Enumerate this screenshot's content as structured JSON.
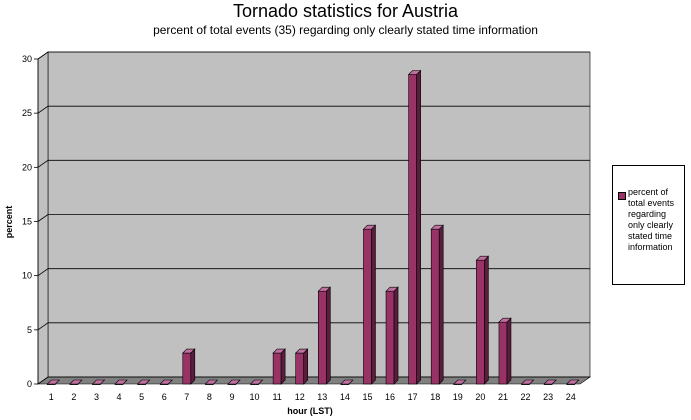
{
  "colors": {
    "bar_front": "#993366",
    "bar_side": "#5a1d3c",
    "bar_top": "#c070a0",
    "wall": "#c0c0c0",
    "floor": "#808080",
    "gridline": "#000000"
  },
  "legend": {
    "label": "percent of total events regarding only clearly stated time information"
  },
  "chart_data": {
    "type": "bar",
    "title": "Tornado statistics for Austria",
    "subtitle": "percent of total events (35) regarding only clearly stated time information",
    "xlabel": "hour (LST)",
    "ylabel": "percent",
    "categories": [
      "1",
      "2",
      "3",
      "4",
      "5",
      "6",
      "7",
      "8",
      "9",
      "10",
      "11",
      "12",
      "13",
      "14",
      "15",
      "16",
      "17",
      "18",
      "19",
      "20",
      "21",
      "22",
      "23",
      "24"
    ],
    "series": [
      {
        "name": "percent of total events regarding only clearly stated time information",
        "values": [
          0,
          0,
          0,
          0,
          0,
          0,
          2.86,
          0,
          0,
          0,
          2.86,
          2.86,
          8.57,
          0,
          14.29,
          8.57,
          28.57,
          14.29,
          0,
          11.43,
          5.71,
          0,
          0,
          0
        ]
      }
    ],
    "ylim": [
      0,
      30
    ],
    "yticks": [
      0,
      5,
      10,
      15,
      20,
      25,
      30
    ],
    "grid": true,
    "legend_position": "right",
    "style": "3d"
  }
}
